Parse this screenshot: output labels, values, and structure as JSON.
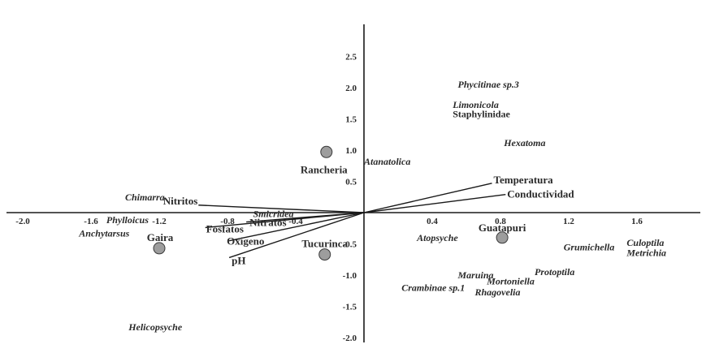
{
  "chart_data": {
    "type": "scatter",
    "title": "",
    "xlabel": "",
    "ylabel": "",
    "xlim": [
      -2.0,
      2.0
    ],
    "ylim": [
      -2.0,
      2.9
    ],
    "x_ticks": [
      {
        "value": -2.0,
        "label": "-2.0"
      },
      {
        "value": -1.6,
        "label": "-1.6"
      },
      {
        "value": -1.2,
        "label": "-1.2"
      },
      {
        "value": -0.8,
        "label": "-0.8"
      },
      {
        "value": -0.4,
        "label": "-0.4"
      },
      {
        "value": 0.4,
        "label": "0.4"
      },
      {
        "value": 0.8,
        "label": "0.8"
      },
      {
        "value": 1.2,
        "label": "1.2"
      },
      {
        "value": 1.6,
        "label": "1.6"
      }
    ],
    "y_ticks": [
      {
        "value": 2.5,
        "label": "2.5"
      },
      {
        "value": 2.0,
        "label": "2.0"
      },
      {
        "value": 1.5,
        "label": "1.5"
      },
      {
        "value": 1.0,
        "label": "1.0"
      },
      {
        "value": 0.5,
        "label": "0.5"
      },
      {
        "value": -0.5,
        "label": "-0.5"
      },
      {
        "value": -1.0,
        "label": "-1.0"
      },
      {
        "value": -1.5,
        "label": "-1.5"
      },
      {
        "value": -2.0,
        "label": "-2.0"
      }
    ],
    "sites": [
      {
        "name": "Rancheria",
        "x": -0.22,
        "y": 0.97
      },
      {
        "name": "Gaira",
        "x": -1.2,
        "y": -0.57
      },
      {
        "name": "Tucurinca",
        "x": -0.23,
        "y": -0.67
      },
      {
        "name": "Guatapuri",
        "x": 0.81,
        "y": -0.4
      }
    ],
    "vectors": [
      {
        "name": "Temperatura",
        "x": 0.75,
        "y": 0.47
      },
      {
        "name": "Conductividad",
        "x": 0.83,
        "y": 0.29
      },
      {
        "name": "Nitritos",
        "x": -0.97,
        "y": 0.12
      },
      {
        "name": "Fosfatos",
        "x": -0.93,
        "y": -0.24
      },
      {
        "name": "Nitratos",
        "x": -0.69,
        "y": -0.15
      },
      {
        "name": "Oxigeno",
        "x": -0.79,
        "y": -0.45
      },
      {
        "name": "pH",
        "x": -0.79,
        "y": -0.72
      }
    ],
    "species": [
      {
        "name": "Phycitinae sp.3",
        "x": 0.55,
        "y": 2.05,
        "italic": true
      },
      {
        "name": "Limonicola",
        "x": 0.52,
        "y": 1.73,
        "italic": true
      },
      {
        "name": "Staphylinidae",
        "x": 0.52,
        "y": 1.58,
        "italic": false
      },
      {
        "name": "Hexatoma",
        "x": 0.82,
        "y": 1.12,
        "italic": true
      },
      {
        "name": "Atanatolica",
        "x": 0.0,
        "y": 0.82,
        "italic": true
      },
      {
        "name": "Chimarra",
        "x": -1.4,
        "y": 0.25,
        "italic": true
      },
      {
        "name": "Smicridea",
        "x": -0.65,
        "y": -0.02,
        "italic": true
      },
      {
        "name": "Phylloicus",
        "x": -1.51,
        "y": -0.12,
        "italic": true
      },
      {
        "name": "Anchytarsus",
        "x": -1.67,
        "y": -0.33,
        "italic": true
      },
      {
        "name": "Atopsyche",
        "x": 0.31,
        "y": -0.4,
        "italic": true
      },
      {
        "name": "Grumichella",
        "x": 1.17,
        "y": -0.55,
        "italic": true
      },
      {
        "name": "Culoptila",
        "x": 1.54,
        "y": -0.48,
        "italic": true
      },
      {
        "name": "Metrichia",
        "x": 1.54,
        "y": -0.64,
        "italic": true
      },
      {
        "name": "Protoptila",
        "x": 1.0,
        "y": -0.95,
        "italic": true
      },
      {
        "name": "Maruina",
        "x": 0.55,
        "y": -1.0,
        "italic": true
      },
      {
        "name": "Mortoniella",
        "x": 0.72,
        "y": -1.1,
        "italic": true
      },
      {
        "name": "Crambinae sp.1",
        "x": 0.22,
        "y": -1.2,
        "italic": true
      },
      {
        "name": "Rhagovelia",
        "x": 0.65,
        "y": -1.27,
        "italic": true
      },
      {
        "name": "Helicopsyche",
        "x": -1.38,
        "y": -1.83,
        "italic": true
      }
    ],
    "grid": false,
    "legend": "none"
  }
}
